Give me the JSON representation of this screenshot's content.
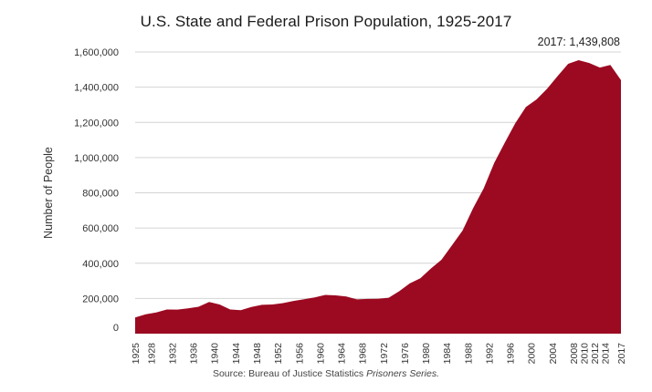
{
  "chart_data": {
    "type": "area",
    "title": "U.S. State and Federal Prison Population, 1925-2017",
    "xlabel": "",
    "ylabel": "Number of People",
    "ylim": [
      0,
      1600000
    ],
    "xlim": [
      1925,
      2017
    ],
    "yticks": [
      0,
      200000,
      400000,
      600000,
      800000,
      1000000,
      1200000,
      1400000,
      1600000
    ],
    "ytick_labels": [
      "0",
      "200,000",
      "400,000",
      "600,000",
      "800,000",
      "1,000,000",
      "1,200,000",
      "1,400,000",
      "1,600,000"
    ],
    "xticks": [
      1925,
      1928,
      1932,
      1936,
      1940,
      1944,
      1948,
      1952,
      1956,
      1960,
      1964,
      1968,
      1972,
      1976,
      1980,
      1984,
      1988,
      1992,
      1996,
      2000,
      2004,
      2008,
      2010,
      2012,
      2014,
      2017
    ],
    "grid": true,
    "color": "#9b0a21",
    "annotation": "2017: 1,439,808",
    "x": [
      1925,
      1927,
      1929,
      1931,
      1933,
      1935,
      1937,
      1939,
      1941,
      1943,
      1945,
      1947,
      1949,
      1951,
      1953,
      1955,
      1957,
      1959,
      1961,
      1963,
      1965,
      1967,
      1969,
      1971,
      1973,
      1975,
      1977,
      1979,
      1981,
      1983,
      1985,
      1987,
      1989,
      1991,
      1993,
      1995,
      1997,
      1999,
      2001,
      2003,
      2005,
      2007,
      2009,
      2011,
      2013,
      2015,
      2017
    ],
    "values": [
      91669,
      109983,
      120496,
      137082,
      136810,
      144180,
      152741,
      179818,
      165439,
      137220,
      133649,
      151304,
      163749,
      165680,
      173579,
      185780,
      195414,
      206216,
      220149,
      217283,
      210895,
      194896,
      197136,
      198061,
      204211,
      240593,
      285456,
      314457,
      369930,
      419346,
      502507,
      585084,
      712364,
      825559,
      969301,
      1085022,
      1195498,
      1287172,
      1330007,
      1390279,
      1462866,
      1532851,
      1553574,
      1537414,
      1511480,
      1526603,
      1439808
    ]
  },
  "source": {
    "prefix": "Source",
    "text": ": Bureau of Justice Statistics ",
    "series": "Prisoners Series."
  }
}
